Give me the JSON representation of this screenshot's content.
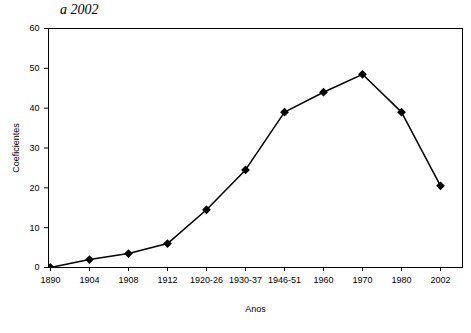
{
  "chart_data": {
    "type": "line",
    "title": "a 2002",
    "x_label": "Anos",
    "y_label": "Coeficientes",
    "categories": [
      "1890",
      "1904",
      "1908",
      "1912",
      "1920-26",
      "1930-37",
      "1946-51",
      "1960",
      "1970",
      "1980",
      "2002"
    ],
    "values": [
      0,
      2,
      3.5,
      6,
      14.5,
      24.5,
      39,
      44,
      48.5,
      39,
      20.5
    ],
    "color": "#000000",
    "marker": "diamond",
    "line_style": "solid",
    "ylim": [
      0,
      60
    ],
    "yticks": [
      0,
      10,
      20,
      30,
      40,
      50,
      60
    ],
    "grid": false
  }
}
